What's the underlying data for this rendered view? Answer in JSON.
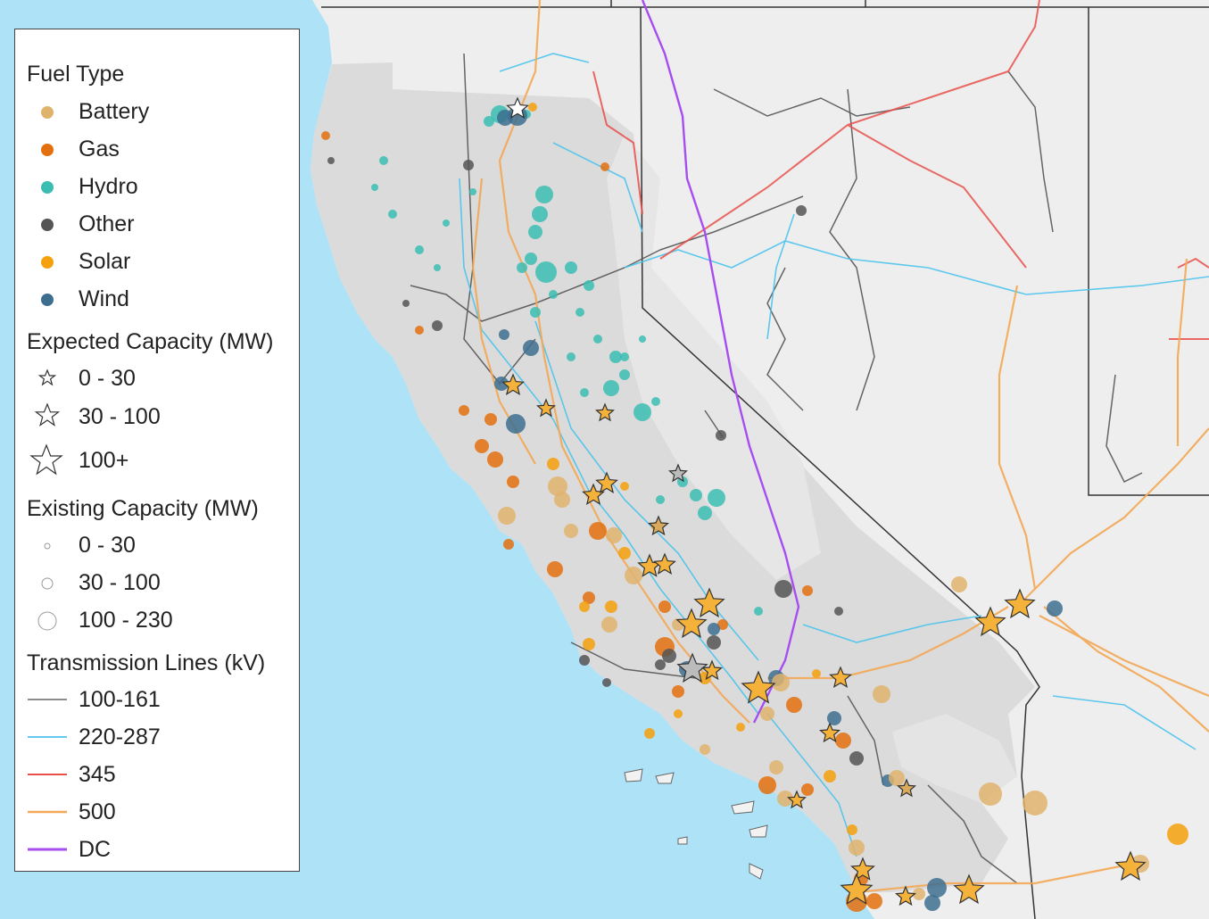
{
  "legend": {
    "fuel_type": {
      "title": "Fuel Type",
      "items": [
        {
          "label": "Battery",
          "color": "#e0b36d"
        },
        {
          "label": "Gas",
          "color": "#e3700e"
        },
        {
          "label": "Hydro",
          "color": "#3bbdb2"
        },
        {
          "label": "Other",
          "color": "#555555"
        },
        {
          "label": "Solar",
          "color": "#f5a00d"
        },
        {
          "label": "Wind",
          "color": "#3d6e8f"
        }
      ]
    },
    "expected_capacity": {
      "title": "Expected Capacity (MW)",
      "items": [
        {
          "label": "0 - 30",
          "icon": "star-small-icon"
        },
        {
          "label": "30 - 100",
          "icon": "star-medium-icon"
        },
        {
          "label": "100+",
          "icon": "star-large-icon"
        }
      ]
    },
    "existing_capacity": {
      "title": "Existing Capacity (MW)",
      "items": [
        {
          "label": "0 - 30",
          "icon": "circle-small-icon"
        },
        {
          "label": "30 - 100",
          "icon": "circle-medium-icon"
        },
        {
          "label": "100 - 230",
          "icon": "circle-large-icon"
        }
      ]
    },
    "transmission_lines": {
      "title": "Transmission Lines (kV)",
      "items": [
        {
          "label": "100-161",
          "color": "#666666"
        },
        {
          "label": "220-287",
          "color": "#4dc3ec"
        },
        {
          "label": "345",
          "color": "#e8504a"
        },
        {
          "label": "500",
          "color": "#f3a855"
        },
        {
          "label": "DC",
          "color": "#a64df0"
        }
      ]
    }
  },
  "colors": {
    "ocean": "#aee2f7",
    "land": "#eeeeee",
    "central_valley": "#d8d8d8",
    "state_border": "#333333"
  }
}
